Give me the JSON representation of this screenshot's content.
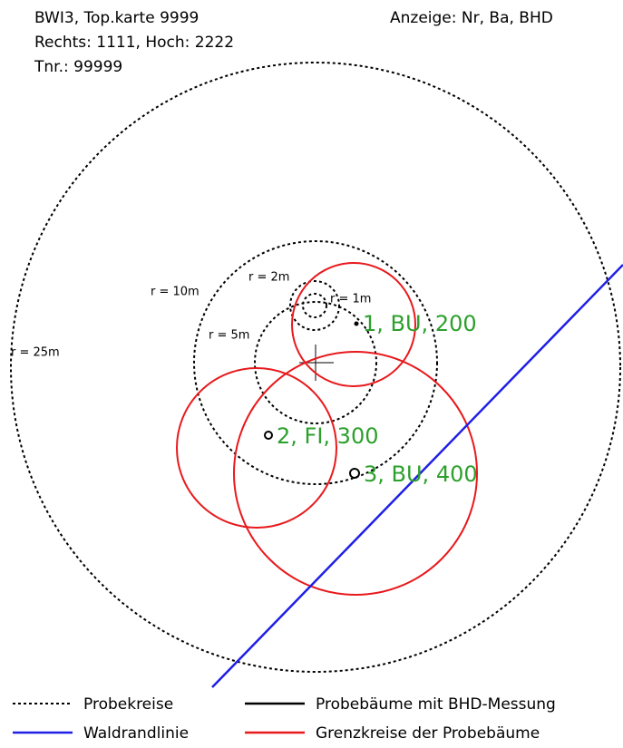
{
  "header": {
    "lines": [
      "BWI3, Top.karte 9999",
      "Rechts: 1111, Hoch: 2222",
      "Tnr.: 99999"
    ],
    "display": "Anzeige: Nr, Ba, BHD"
  },
  "circles": [
    {
      "label": "r = 25m"
    },
    {
      "label": "r = 10m"
    },
    {
      "label": "r = 5m"
    },
    {
      "label": "r = 2m"
    },
    {
      "label": "r = 1m"
    }
  ],
  "trees": [
    {
      "label": "1, BU, 200"
    },
    {
      "label": "2, FI, 300"
    },
    {
      "label": "3, BU, 400"
    }
  ],
  "legend": [
    "Probekreise",
    "Waldrandlinie",
    "Probebäume mit BHD-Messung",
    "Grenzkreise der Probebäume"
  ]
}
